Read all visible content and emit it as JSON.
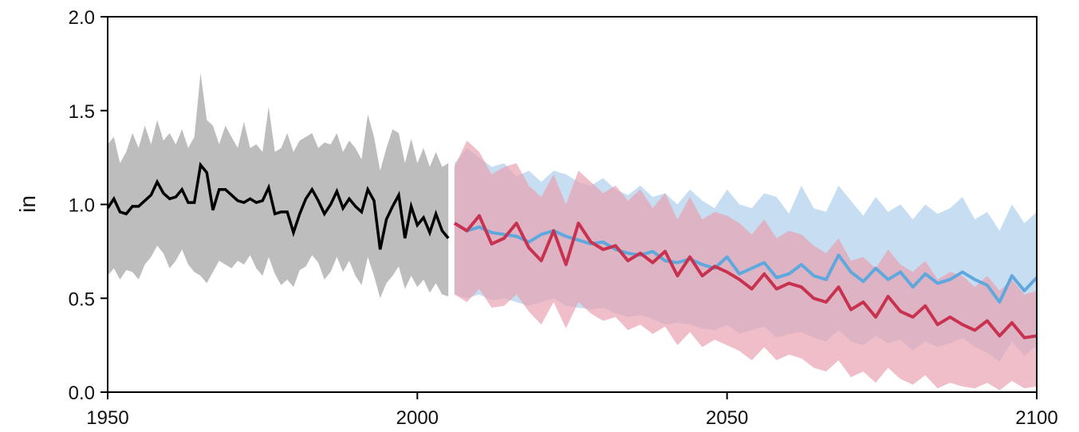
{
  "chart_data": {
    "type": "area",
    "title": "",
    "xlabel": "",
    "ylabel": "in",
    "xlim": [
      1950,
      2100
    ],
    "ylim": [
      0.0,
      2.0
    ],
    "xticks": [
      "1950",
      "2000",
      "2050",
      "2100"
    ],
    "yticks": [
      "0.0",
      "0.5",
      "1.0",
      "1.5",
      "2.0"
    ],
    "grid": false,
    "legend": "none",
    "colors": {
      "historical_line": "#000000",
      "historical_band": "#bdbdbd",
      "lower_scenario_line": "#5fa8de",
      "lower_scenario_band": "#bcd7f0",
      "higher_scenario_line": "#c8324f",
      "higher_scenario_band": "#e8a3b2",
      "overlap_band": "#b49ab9"
    },
    "series": [
      {
        "role": "historical",
        "x": [
          1950,
          1951,
          1952,
          1953,
          1954,
          1955,
          1956,
          1957,
          1958,
          1959,
          1960,
          1961,
          1962,
          1963,
          1964,
          1965,
          1966,
          1967,
          1968,
          1969,
          1970,
          1971,
          1972,
          1973,
          1974,
          1975,
          1976,
          1977,
          1978,
          1979,
          1980,
          1981,
          1982,
          1983,
          1984,
          1985,
          1986,
          1987,
          1988,
          1989,
          1990,
          1991,
          1992,
          1993,
          1994,
          1995,
          1996,
          1997,
          1998,
          1999,
          2000,
          2001,
          2002,
          2003,
          2004,
          2005
        ],
        "mean": [
          0.98,
          1.03,
          0.96,
          0.95,
          0.99,
          0.99,
          1.02,
          1.05,
          1.12,
          1.06,
          1.03,
          1.04,
          1.08,
          1.01,
          1.01,
          1.21,
          1.17,
          0.97,
          1.08,
          1.08,
          1.05,
          1.02,
          1.01,
          1.03,
          1.01,
          1.02,
          1.09,
          0.95,
          0.96,
          0.96,
          0.85,
          0.95,
          1.03,
          1.08,
          1.02,
          0.95,
          1.0,
          1.07,
          0.98,
          1.03,
          0.99,
          0.96,
          1.08,
          1.02,
          0.76,
          0.92,
          0.99,
          1.05,
          0.82,
          0.99,
          0.89,
          0.93,
          0.85,
          0.95,
          0.86,
          0.82
        ],
        "upper": [
          1.32,
          1.36,
          1.22,
          1.28,
          1.38,
          1.3,
          1.42,
          1.32,
          1.45,
          1.34,
          1.38,
          1.32,
          1.4,
          1.3,
          1.36,
          1.7,
          1.45,
          1.42,
          1.32,
          1.42,
          1.36,
          1.3,
          1.44,
          1.3,
          1.32,
          1.28,
          1.52,
          1.28,
          1.3,
          1.38,
          1.28,
          1.34,
          1.36,
          1.38,
          1.3,
          1.33,
          1.32,
          1.38,
          1.28,
          1.34,
          1.3,
          1.24,
          1.48,
          1.36,
          1.18,
          1.3,
          1.4,
          1.38,
          1.22,
          1.35,
          1.22,
          1.3,
          1.2,
          1.28,
          1.2,
          1.22
        ],
        "lower": [
          0.62,
          0.66,
          0.6,
          0.65,
          0.64,
          0.6,
          0.68,
          0.72,
          0.78,
          0.74,
          0.66,
          0.7,
          0.76,
          0.68,
          0.64,
          0.62,
          0.58,
          0.64,
          0.7,
          0.68,
          0.66,
          0.7,
          0.68,
          0.73,
          0.66,
          0.62,
          0.72,
          0.63,
          0.57,
          0.6,
          0.56,
          0.65,
          0.67,
          0.73,
          0.69,
          0.6,
          0.64,
          0.72,
          0.64,
          0.7,
          0.62,
          0.57,
          0.72,
          0.62,
          0.5,
          0.58,
          0.62,
          0.67,
          0.55,
          0.62,
          0.56,
          0.6,
          0.53,
          0.58,
          0.52,
          0.51
        ]
      },
      {
        "role": "lower_scenario",
        "x": [
          2006,
          2008,
          2010,
          2012,
          2014,
          2016,
          2018,
          2020,
          2022,
          2024,
          2026,
          2028,
          2030,
          2032,
          2034,
          2036,
          2038,
          2040,
          2042,
          2044,
          2046,
          2048,
          2050,
          2052,
          2054,
          2056,
          2058,
          2060,
          2062,
          2064,
          2066,
          2068,
          2070,
          2072,
          2074,
          2076,
          2078,
          2080,
          2082,
          2084,
          2086,
          2088,
          2090,
          2092,
          2094,
          2096,
          2098,
          2100
        ],
        "mean": [
          0.9,
          0.86,
          0.88,
          0.85,
          0.84,
          0.83,
          0.8,
          0.84,
          0.86,
          0.83,
          0.81,
          0.79,
          0.8,
          0.76,
          0.74,
          0.73,
          0.75,
          0.7,
          0.69,
          0.71,
          0.68,
          0.66,
          0.72,
          0.63,
          0.66,
          0.69,
          0.61,
          0.63,
          0.68,
          0.62,
          0.6,
          0.73,
          0.64,
          0.59,
          0.66,
          0.6,
          0.64,
          0.56,
          0.63,
          0.58,
          0.6,
          0.64,
          0.6,
          0.57,
          0.48,
          0.62,
          0.54,
          0.61
        ],
        "upper": [
          1.22,
          1.3,
          1.25,
          1.2,
          1.22,
          1.15,
          1.18,
          1.12,
          1.18,
          1.16,
          1.12,
          1.1,
          1.14,
          1.08,
          1.05,
          1.1,
          1.04,
          1.06,
          1.0,
          1.08,
          1.02,
          0.98,
          1.08,
          1.0,
          0.98,
          1.06,
          1.04,
          0.95,
          1.1,
          0.98,
          0.96,
          1.1,
          1.02,
          0.94,
          1.04,
          0.96,
          1.0,
          0.92,
          1.0,
          0.95,
          0.98,
          1.04,
          0.92,
          0.96,
          0.86,
          1.0,
          0.9,
          0.96
        ],
        "lower": [
          0.52,
          0.5,
          0.52,
          0.49,
          0.5,
          0.48,
          0.46,
          0.48,
          0.5,
          0.46,
          0.45,
          0.44,
          0.45,
          0.42,
          0.4,
          0.41,
          0.39,
          0.36,
          0.37,
          0.36,
          0.34,
          0.33,
          0.36,
          0.31,
          0.33,
          0.35,
          0.29,
          0.31,
          0.32,
          0.29,
          0.27,
          0.33,
          0.27,
          0.25,
          0.3,
          0.26,
          0.28,
          0.22,
          0.27,
          0.24,
          0.26,
          0.29,
          0.24,
          0.21,
          0.16,
          0.27,
          0.19,
          0.25
        ]
      },
      {
        "role": "higher_scenario",
        "x": [
          2006,
          2008,
          2010,
          2012,
          2014,
          2016,
          2018,
          2020,
          2022,
          2024,
          2026,
          2028,
          2030,
          2032,
          2034,
          2036,
          2038,
          2040,
          2042,
          2044,
          2046,
          2048,
          2050,
          2052,
          2054,
          2056,
          2058,
          2060,
          2062,
          2064,
          2066,
          2068,
          2070,
          2072,
          2074,
          2076,
          2078,
          2080,
          2082,
          2084,
          2086,
          2088,
          2090,
          2092,
          2094,
          2096,
          2098,
          2100
        ],
        "mean": [
          0.9,
          0.86,
          0.94,
          0.79,
          0.82,
          0.9,
          0.77,
          0.7,
          0.86,
          0.68,
          0.9,
          0.8,
          0.76,
          0.78,
          0.7,
          0.74,
          0.69,
          0.75,
          0.62,
          0.72,
          0.62,
          0.67,
          0.64,
          0.6,
          0.55,
          0.63,
          0.55,
          0.58,
          0.56,
          0.5,
          0.48,
          0.56,
          0.44,
          0.48,
          0.4,
          0.51,
          0.43,
          0.4,
          0.46,
          0.36,
          0.4,
          0.36,
          0.33,
          0.38,
          0.3,
          0.37,
          0.29,
          0.3
        ],
        "upper": [
          1.2,
          1.34,
          1.28,
          1.16,
          1.2,
          1.22,
          1.1,
          1.04,
          1.16,
          1.0,
          1.18,
          1.12,
          1.06,
          1.1,
          1.02,
          1.08,
          0.98,
          1.06,
          0.92,
          1.04,
          0.92,
          0.96,
          0.94,
          0.9,
          0.84,
          0.92,
          0.82,
          0.86,
          0.84,
          0.78,
          0.74,
          0.82,
          0.7,
          0.72,
          0.66,
          0.76,
          0.68,
          0.64,
          0.7,
          0.6,
          0.64,
          0.62,
          0.56,
          0.62,
          0.54,
          0.6,
          0.52,
          0.54
        ],
        "lower": [
          0.52,
          0.48,
          0.55,
          0.45,
          0.46,
          0.52,
          0.43,
          0.36,
          0.48,
          0.34,
          0.48,
          0.42,
          0.38,
          0.4,
          0.33,
          0.36,
          0.31,
          0.35,
          0.25,
          0.32,
          0.24,
          0.28,
          0.25,
          0.22,
          0.17,
          0.24,
          0.17,
          0.2,
          0.18,
          0.13,
          0.11,
          0.17,
          0.08,
          0.11,
          0.05,
          0.13,
          0.07,
          0.04,
          0.09,
          0.02,
          0.05,
          0.03,
          0.02,
          0.05,
          0.01,
          0.06,
          0.02,
          0.03
        ]
      }
    ]
  }
}
